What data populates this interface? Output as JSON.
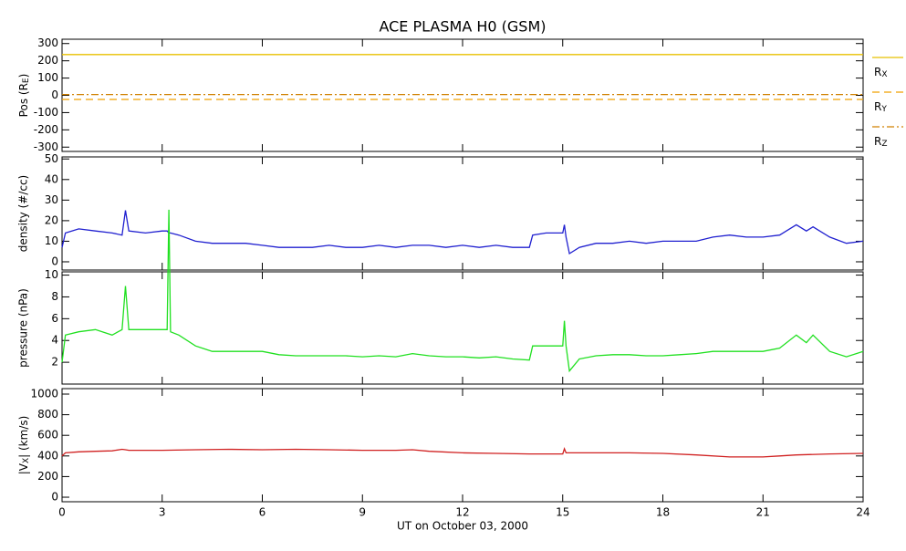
{
  "chart_data": [
    {
      "type": "line",
      "title": "ACE PLASMA H0 (GSM)",
      "ylabel": "Pos (RE)",
      "x": [
        0,
        24
      ],
      "xlim": [
        0,
        24
      ],
      "xticks": [
        0,
        3,
        6,
        9,
        12,
        15,
        18,
        21,
        24
      ],
      "ylim": [
        -325,
        325
      ],
      "yticks": [
        -300,
        -200,
        -100,
        0,
        100,
        200,
        300
      ],
      "series": [
        {
          "name": "RX",
          "color": "#e8c000",
          "dash": "solid",
          "values": [
            236,
            236
          ]
        },
        {
          "name": "RY",
          "color": "#f0a000",
          "dash": "dashed",
          "values": [
            -24,
            -24
          ]
        },
        {
          "name": "RZ",
          "color": "#d08000",
          "dash": "dashdot",
          "values": [
            5,
            5
          ]
        }
      ]
    },
    {
      "type": "line",
      "ylabel": "density (#/cc)",
      "x": [
        0,
        0.1,
        0.5,
        1,
        1.5,
        1.8,
        1.9,
        2,
        2.5,
        3,
        3.15,
        3.2,
        3.25,
        3.5,
        4,
        4.5,
        5,
        5.5,
        6,
        6.5,
        7,
        7.5,
        8,
        8.5,
        9,
        9.5,
        10,
        10.5,
        11,
        11.5,
        12,
        12.5,
        13,
        13.5,
        14,
        14.1,
        14.5,
        15,
        15.05,
        15.1,
        15.2,
        15.5,
        16,
        16.5,
        17,
        17.5,
        18,
        18.5,
        19,
        19.5,
        20,
        20.5,
        21,
        21.5,
        22,
        22.3,
        22.5,
        23,
        23.5,
        24
      ],
      "xlim": [
        0,
        24
      ],
      "xticks": [
        0,
        3,
        6,
        9,
        12,
        15,
        18,
        21,
        24
      ],
      "ylim": [
        -4,
        51
      ],
      "yticks": [
        0,
        10,
        20,
        30,
        40,
        50
      ],
      "series": [
        {
          "name": "density",
          "color": "#2020d0",
          "values": [
            7,
            14,
            16,
            15,
            14,
            13,
            25,
            15,
            14,
            15,
            15,
            14,
            14,
            13,
            10,
            9,
            9,
            9,
            8,
            7,
            7,
            7,
            8,
            7,
            7,
            8,
            7,
            8,
            8,
            7,
            8,
            7,
            8,
            7,
            7,
            13,
            14,
            14,
            18,
            12,
            4,
            7,
            9,
            9,
            10,
            9,
            10,
            10,
            10,
            12,
            13,
            12,
            12,
            13,
            18,
            15,
            17,
            12,
            9,
            10
          ]
        }
      ]
    },
    {
      "type": "line",
      "ylabel": "pressure (nPa)",
      "x": [
        0,
        0.1,
        0.5,
        1,
        1.5,
        1.8,
        1.9,
        2,
        2.5,
        3,
        3.15,
        3.2,
        3.25,
        3.5,
        4,
        4.5,
        5,
        5.5,
        6,
        6.5,
        7,
        7.5,
        8,
        8.5,
        9,
        9.5,
        10,
        10.5,
        11,
        11.5,
        12,
        12.5,
        13,
        13.5,
        14,
        14.1,
        14.5,
        15,
        15.05,
        15.1,
        15.2,
        15.5,
        16,
        16.5,
        17,
        17.5,
        18,
        18.5,
        19,
        19.5,
        20,
        20.5,
        21,
        21.5,
        22,
        22.3,
        22.5,
        23,
        23.5,
        24
      ],
      "xlim": [
        0,
        24
      ],
      "xticks": [
        0,
        3,
        6,
        9,
        12,
        15,
        18,
        21,
        24
      ],
      "ylim": [
        0,
        10.3
      ],
      "yticks": [
        2,
        4,
        6,
        8,
        10
      ],
      "series": [
        {
          "name": "pressure",
          "color": "#20e020",
          "values": [
            2,
            4.5,
            4.8,
            5,
            4.5,
            5,
            9,
            5,
            5,
            5,
            5,
            16,
            4.8,
            4.5,
            3.5,
            3,
            3,
            3,
            3,
            2.7,
            2.6,
            2.6,
            2.6,
            2.6,
            2.5,
            2.6,
            2.5,
            2.8,
            2.6,
            2.5,
            2.5,
            2.4,
            2.5,
            2.3,
            2.2,
            3.5,
            3.5,
            3.5,
            5.8,
            3.5,
            1.2,
            2.3,
            2.6,
            2.7,
            2.7,
            2.6,
            2.6,
            2.7,
            2.8,
            3,
            3,
            3,
            3,
            3.3,
            4.5,
            3.8,
            4.5,
            3,
            2.5,
            3
          ]
        }
      ]
    },
    {
      "type": "line",
      "ylabel": "|VX| (km/s)",
      "xlabel": "UT on October 03, 2000",
      "x": [
        0,
        0.1,
        0.5,
        1,
        1.5,
        1.8,
        1.9,
        2,
        2.5,
        3,
        4,
        5,
        6,
        7,
        8,
        9,
        10,
        10.5,
        11,
        12,
        13,
        14,
        15,
        15.05,
        15.1,
        16,
        17,
        18,
        19,
        20,
        21,
        21.5,
        22,
        23,
        24
      ],
      "xlim": [
        0,
        24
      ],
      "xticks": [
        0,
        3,
        6,
        9,
        12,
        15,
        18,
        21,
        24
      ],
      "ylim": [
        -44,
        1053
      ],
      "yticks": [
        0,
        200,
        400,
        600,
        800,
        1000
      ],
      "series": [
        {
          "name": "vx",
          "color": "#d02020",
          "values": [
            400,
            430,
            440,
            445,
            450,
            465,
            460,
            455,
            455,
            455,
            460,
            465,
            460,
            465,
            460,
            455,
            455,
            460,
            445,
            430,
            425,
            420,
            420,
            470,
            430,
            430,
            430,
            425,
            410,
            390,
            390,
            400,
            410,
            420,
            425
          ]
        }
      ]
    }
  ]
}
